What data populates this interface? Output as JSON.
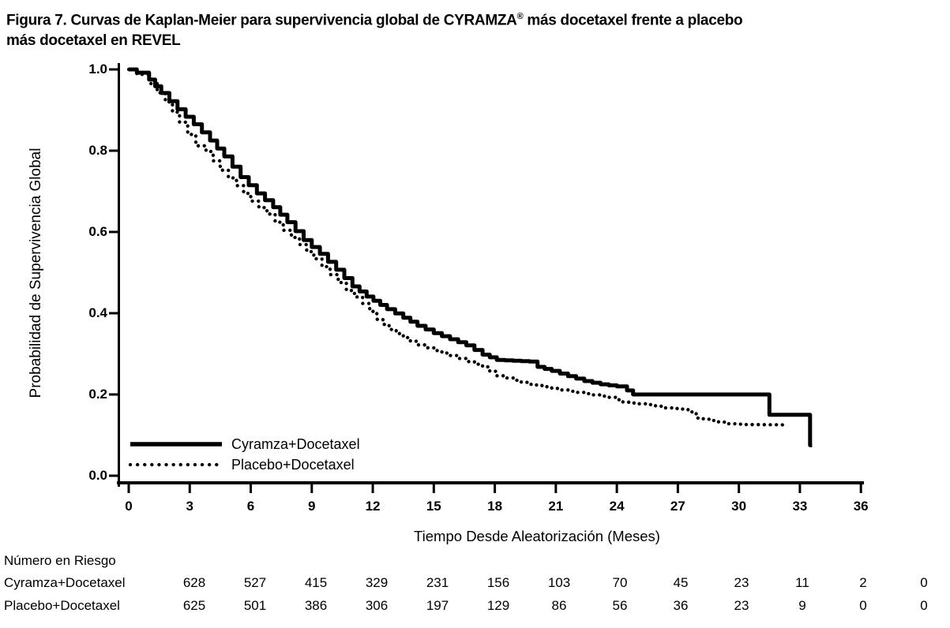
{
  "figure": {
    "title_line1_pre": "Figura 7. Curvas de Kaplan-Meier para supervivencia global de CYRAMZA",
    "title_reg_mark": "®",
    "title_line1_post": " más docetaxel frente a placebo",
    "title_line2": "más docetaxel en REVEL"
  },
  "chart_data": {
    "type": "line",
    "subtype": "kaplan-meier-step",
    "title": "Figura 7. Curvas de Kaplan-Meier para supervivencia global de CYRAMZA® más docetaxel frente a placebo más docetaxel en REVEL",
    "xlabel": "Tiempo Desde Aleatorización (Meses)",
    "ylabel": "Probabilidad de Supervivencia Global",
    "xlim": [
      0,
      36
    ],
    "ylim": [
      0.0,
      1.0
    ],
    "grid": false,
    "legend_position": "inside-bottom-left",
    "x_ticks": [
      0,
      3,
      6,
      9,
      12,
      15,
      18,
      21,
      24,
      27,
      30,
      33,
      36
    ],
    "y_tick_values": [
      0.0,
      0.2,
      0.4,
      0.6,
      0.8,
      1.0
    ],
    "y_tick_labels": [
      "0.0",
      "0.2",
      "0.4",
      "0.6",
      "0.8",
      "1.0"
    ],
    "line_color": "#000000",
    "background_color": "#ffffff",
    "series": [
      {
        "name": "Cyramza+Docetaxel",
        "style": "solid",
        "points": [
          [
            0,
            1.0
          ],
          [
            0.4,
            0.992
          ],
          [
            1.0,
            0.975
          ],
          [
            1.6,
            0.942
          ],
          [
            2.4,
            0.902
          ],
          [
            3.2,
            0.865
          ],
          [
            4.0,
            0.825
          ],
          [
            4.7,
            0.786
          ],
          [
            5.5,
            0.735
          ],
          [
            6.3,
            0.695
          ],
          [
            7.1,
            0.661
          ],
          [
            7.8,
            0.624
          ],
          [
            8.6,
            0.58
          ],
          [
            9.4,
            0.546
          ],
          [
            10.2,
            0.507
          ],
          [
            11.0,
            0.466
          ],
          [
            11.7,
            0.441
          ],
          [
            12.7,
            0.41
          ],
          [
            13.5,
            0.389
          ],
          [
            14.2,
            0.369
          ],
          [
            15.0,
            0.351
          ],
          [
            15.8,
            0.336
          ],
          [
            16.6,
            0.321
          ],
          [
            17.4,
            0.298
          ],
          [
            18.1,
            0.285
          ],
          [
            19.7,
            0.281
          ],
          [
            20.1,
            0.268
          ],
          [
            20.8,
            0.258
          ],
          [
            21.6,
            0.245
          ],
          [
            22.4,
            0.233
          ],
          [
            23.2,
            0.225
          ],
          [
            24.0,
            0.22
          ],
          [
            24.5,
            0.21
          ],
          [
            24.8,
            0.2
          ],
          [
            31.4,
            0.2
          ],
          [
            31.5,
            0.15
          ],
          [
            33.4,
            0.15
          ],
          [
            33.5,
            0.075
          ],
          [
            33.6,
            0.075
          ]
        ]
      },
      {
        "name": "Placebo+Docetaxel",
        "style": "dotted",
        "points": [
          [
            0,
            1.0
          ],
          [
            0.4,
            0.988
          ],
          [
            1.0,
            0.965
          ],
          [
            1.8,
            0.92
          ],
          [
            2.5,
            0.87
          ],
          [
            2.9,
            0.84
          ],
          [
            3.3,
            0.812
          ],
          [
            3.8,
            0.798
          ],
          [
            4.5,
            0.752
          ],
          [
            5.3,
            0.714
          ],
          [
            6.0,
            0.676
          ],
          [
            6.8,
            0.644
          ],
          [
            7.6,
            0.604
          ],
          [
            8.4,
            0.569
          ],
          [
            9.1,
            0.534
          ],
          [
            9.9,
            0.495
          ],
          [
            10.7,
            0.456
          ],
          [
            11.5,
            0.424
          ],
          [
            12.2,
            0.385
          ],
          [
            12.8,
            0.36
          ],
          [
            13.5,
            0.34
          ],
          [
            14.2,
            0.322
          ],
          [
            15.0,
            0.308
          ],
          [
            15.8,
            0.296
          ],
          [
            16.6,
            0.281
          ],
          [
            17.4,
            0.268
          ],
          [
            18.1,
            0.246
          ],
          [
            18.9,
            0.235
          ],
          [
            19.7,
            0.225
          ],
          [
            20.4,
            0.219
          ],
          [
            21.2,
            0.211
          ],
          [
            22.0,
            0.205
          ],
          [
            22.8,
            0.199
          ],
          [
            23.6,
            0.193
          ],
          [
            24.3,
            0.181
          ],
          [
            25.5,
            0.175
          ],
          [
            26.3,
            0.167
          ],
          [
            27.1,
            0.164
          ],
          [
            27.5,
            0.157
          ],
          [
            27.9,
            0.142
          ],
          [
            28.6,
            0.136
          ],
          [
            29.4,
            0.128
          ],
          [
            30.2,
            0.126
          ],
          [
            32.3,
            0.125
          ]
        ]
      }
    ],
    "number_at_risk": {
      "title": "Número en Riesgo",
      "time_points": [
        0,
        3,
        6,
        9,
        12,
        15,
        18,
        21,
        24,
        27,
        30,
        33,
        36
      ],
      "rows": [
        {
          "label": "Cyramza+Docetaxel",
          "values": [
            628,
            527,
            415,
            329,
            231,
            156,
            103,
            70,
            45,
            23,
            11,
            2,
            0
          ]
        },
        {
          "label": "Placebo+Docetaxel",
          "values": [
            625,
            501,
            386,
            306,
            197,
            129,
            86,
            56,
            36,
            23,
            9,
            0,
            0
          ]
        }
      ]
    }
  }
}
